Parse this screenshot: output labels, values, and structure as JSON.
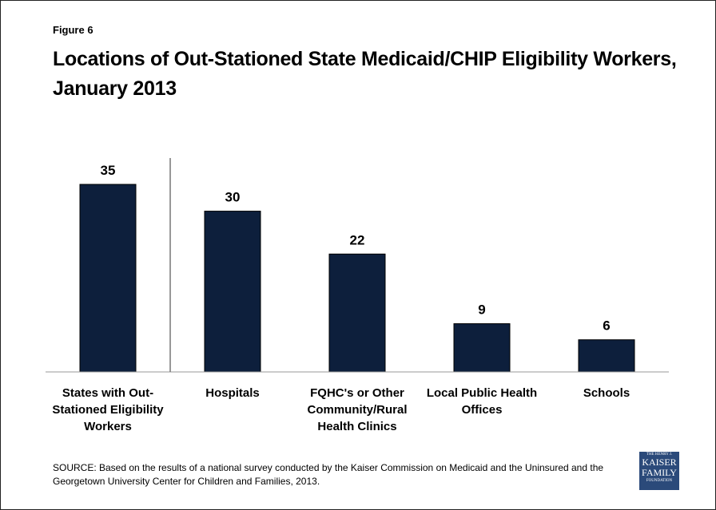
{
  "figure_label": "Figure 6",
  "chart_data": {
    "type": "bar",
    "title": "Locations of Out-Stationed State Medicaid/CHIP Eligibility Workers, January 2013",
    "categories": [
      "States with Out-Stationed Eligibility Workers",
      "Hospitals",
      "FQHC's or Other Community/Rural Health Clinics",
      "Local Public Health Offices",
      "Schools"
    ],
    "values": [
      35,
      30,
      22,
      9,
      6
    ],
    "color": "#0d1f3c",
    "ylim": [
      0,
      35
    ],
    "divider_after": 0
  },
  "source": "SOURCE: Based on the results of a national survey conducted by the Kaiser Commission on Medicaid and the Uninsured and the Georgetown University Center for Children and Families, 2013.",
  "logo": {
    "line1": "THE HENRY J.",
    "line2": "KAISER",
    "line3": "FAMILY",
    "line4": "FOUNDATION"
  }
}
